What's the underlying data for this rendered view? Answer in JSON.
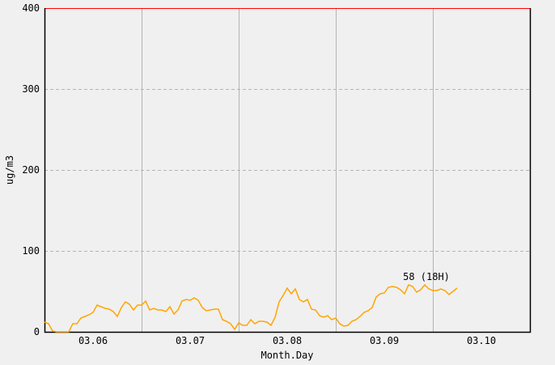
{
  "chart_data": {
    "type": "line",
    "xlabel": "Month.Day",
    "ylabel": "ug/m3",
    "ylim": [
      0,
      400
    ],
    "yticks": [
      0,
      100,
      200,
      300,
      400
    ],
    "xlim": [
      "03.06 00",
      "03.11 00"
    ],
    "xtick_labels": [
      "03.06",
      "03.07",
      "03.08",
      "03.09",
      "03.10"
    ],
    "grid": true,
    "colors": {
      "line": "#ffa500",
      "top_border": "#ff0000",
      "axis": "#000000",
      "grid": "#b4b4b4",
      "background": "#f0f0f0"
    },
    "annotation": {
      "text": "58 (18H)",
      "x": "03.09 18",
      "y": 58
    },
    "series": [
      {
        "x": [
          "03.06 00",
          "03.06 01",
          "03.06 02",
          "03.06 03",
          "03.06 04",
          "03.06 05",
          "03.06 06",
          "03.06 07",
          "03.06 08",
          "03.06 09",
          "03.06 10",
          "03.06 11",
          "03.06 12",
          "03.06 13",
          "03.06 14",
          "03.06 15",
          "03.06 16",
          "03.06 17",
          "03.06 18",
          "03.06 19",
          "03.06 20",
          "03.06 21",
          "03.06 22",
          "03.06 23",
          "03.07 00",
          "03.07 01",
          "03.07 02",
          "03.07 03",
          "03.07 04",
          "03.07 05",
          "03.07 06",
          "03.07 07",
          "03.07 08",
          "03.07 09",
          "03.07 10",
          "03.07 11",
          "03.07 12",
          "03.07 13",
          "03.07 14",
          "03.07 15",
          "03.07 16",
          "03.07 17",
          "03.07 18",
          "03.07 19",
          "03.07 20",
          "03.07 21",
          "03.07 22",
          "03.07 23",
          "03.08 00",
          "03.08 01",
          "03.08 02",
          "03.08 03",
          "03.08 04",
          "03.08 05",
          "03.08 06",
          "03.08 07",
          "03.08 08",
          "03.08 09",
          "03.08 10",
          "03.08 11",
          "03.08 12",
          "03.08 13",
          "03.08 14",
          "03.08 15",
          "03.08 16",
          "03.08 17",
          "03.08 18",
          "03.08 19",
          "03.08 20",
          "03.08 21",
          "03.08 22",
          "03.08 23",
          "03.09 00",
          "03.09 01",
          "03.09 02",
          "03.09 03",
          "03.09 04",
          "03.09 05",
          "03.09 06",
          "03.09 07",
          "03.09 08",
          "03.09 09",
          "03.09 10",
          "03.09 11",
          "03.09 12",
          "03.09 13",
          "03.09 14",
          "03.09 15",
          "03.09 16",
          "03.09 17",
          "03.09 18",
          "03.09 19",
          "03.09 20",
          "03.09 21",
          "03.09 22",
          "03.09 23",
          "03.10 00",
          "03.10 01",
          "03.10 02",
          "03.10 03",
          "03.10 04",
          "03.10 05",
          "03.10 06"
        ],
        "values": [
          12,
          10,
          1,
          0,
          0,
          0,
          0,
          10,
          10,
          17,
          19,
          21,
          24,
          33,
          31,
          29,
          28,
          25,
          19,
          30,
          37,
          34,
          27,
          33,
          33,
          38,
          27,
          29,
          27,
          27,
          25,
          31,
          22,
          27,
          38,
          40,
          39,
          42,
          39,
          30,
          26,
          27,
          28,
          28,
          15,
          13,
          10,
          3,
          11,
          8,
          8,
          15,
          10,
          13,
          13,
          12,
          8,
          18,
          37,
          45,
          54,
          47,
          53,
          40,
          37,
          40,
          28,
          27,
          20,
          18,
          20,
          15,
          17,
          10,
          7,
          8,
          13,
          15,
          19,
          24,
          26,
          30,
          43,
          47,
          48,
          55,
          56,
          55,
          52,
          47,
          58,
          56,
          49,
          52,
          58,
          53,
          51,
          51,
          53,
          51,
          46,
          50,
          54
        ]
      }
    ]
  }
}
